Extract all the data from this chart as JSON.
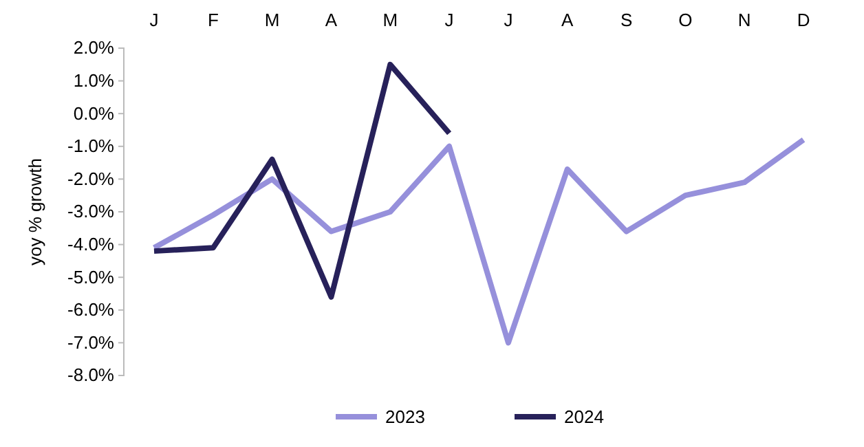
{
  "chart_data": {
    "type": "line",
    "ylabel": "yoy % growth",
    "categories": [
      "J",
      "F",
      "M",
      "A",
      "M",
      "J",
      "J",
      "A",
      "S",
      "O",
      "N",
      "D"
    ],
    "series": [
      {
        "name": "2023",
        "color": "#9690db",
        "values": [
          -4.1,
          -3.1,
          -2.0,
          -3.6,
          -3.0,
          -1.0,
          -7.0,
          -1.7,
          -3.6,
          -2.5,
          -2.1,
          -0.8
        ]
      },
      {
        "name": "2024",
        "color": "#27215a",
        "values": [
          -4.2,
          -4.1,
          -1.4,
          -5.6,
          1.5,
          -0.6,
          null,
          null,
          null,
          null,
          null,
          null
        ]
      }
    ],
    "ylim": [
      -8,
      2
    ],
    "yticks": [
      {
        "value": 2,
        "label": "2.0%"
      },
      {
        "value": 1,
        "label": "1.0%"
      },
      {
        "value": 0,
        "label": "0.0%"
      },
      {
        "value": -1,
        "label": "-1.0%"
      },
      {
        "value": -2,
        "label": "-2.0%"
      },
      {
        "value": -3,
        "label": "-3.0%"
      },
      {
        "value": -4,
        "label": "-4.0%"
      },
      {
        "value": -5,
        "label": "-5.0%"
      },
      {
        "value": -6,
        "label": "-6.0%"
      },
      {
        "value": -7,
        "label": "-7.0%"
      },
      {
        "value": -8,
        "label": "-8.0%"
      }
    ],
    "grid": false,
    "legend": "bottom",
    "marker": "none",
    "line_style": "solid"
  }
}
